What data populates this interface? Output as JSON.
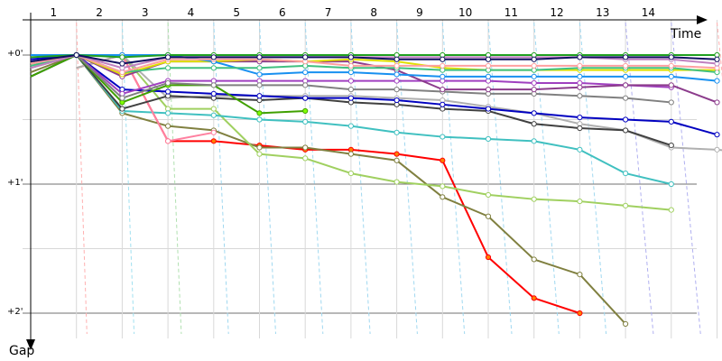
{
  "chart_data": {
    "type": "line",
    "xlabel": "Time",
    "ylabel": "Gap",
    "laps": [
      "1",
      "2",
      "3",
      "4",
      "5",
      "6",
      "7",
      "8",
      "9",
      "10",
      "11",
      "12",
      "13",
      "14"
    ],
    "y_ticks": [
      {
        "value": 0,
        "label": "+0'"
      },
      {
        "value": 60,
        "label": "+1'"
      },
      {
        "value": 120,
        "label": "+2'"
      }
    ],
    "ylim": [
      0,
      120
    ],
    "grid": true,
    "series": [
      {
        "color": "#ff0000",
        "marker": "#ff8000",
        "start": 1,
        "values": [
          6,
          0,
          40,
          40,
          42,
          44,
          44,
          46,
          49,
          94,
          113,
          120
        ]
      },
      {
        "color": "#808040",
        "marker": "#ffffff",
        "start": 0,
        "values": [
          8,
          0,
          27,
          33,
          35,
          43,
          43,
          46,
          49,
          66,
          75,
          95,
          102,
          125
        ]
      },
      {
        "color": "#a0d060",
        "marker": "#ffffff",
        "start": 1,
        "values": [
          6,
          0,
          25,
          25,
          46,
          48,
          55,
          59,
          61,
          65,
          67,
          68,
          70,
          72
        ]
      },
      {
        "color": "#40c0c0",
        "marker": "#ffffff",
        "start": 0,
        "values": [
          10,
          0,
          26,
          27,
          28,
          30,
          31,
          33,
          36,
          38,
          39,
          40,
          44,
          55,
          60
        ]
      },
      {
        "color": "#ff80a0",
        "marker": "#ffffff",
        "start": 1,
        "values": [
          6,
          0,
          40,
          36
        ]
      },
      {
        "color": "#b0b0b0",
        "marker": "#ffffff",
        "start": 1,
        "values": [
          6,
          0,
          20,
          19,
          19,
          19,
          19,
          20,
          21,
          24,
          27,
          32,
          35,
          43,
          44,
          46
        ]
      },
      {
        "color": "#404040",
        "marker": "#ffffff",
        "start": 0,
        "values": [
          10,
          0,
          25,
          19,
          20,
          21,
          20,
          22,
          23,
          25,
          26,
          32,
          34,
          35,
          42
        ]
      },
      {
        "color": "#0000c0",
        "marker": "#ffffff",
        "start": 0,
        "values": [
          2,
          0,
          16,
          17,
          18,
          19,
          20,
          20,
          21,
          23,
          25,
          27,
          29,
          30,
          31,
          37
        ]
      },
      {
        "color": "#40a000",
        "marker": "#80ff00",
        "start": 0,
        "values": [
          10,
          0,
          22,
          14,
          14,
          27,
          26
        ]
      },
      {
        "color": "#a040c0",
        "marker": "#ffffff",
        "start": 0,
        "values": [
          4,
          0,
          18,
          12,
          12,
          12,
          12,
          12,
          12,
          12,
          12,
          13,
          13,
          14,
          15
        ]
      },
      {
        "color": "#808080",
        "marker": "#ffffff",
        "start": 0,
        "values": [
          6,
          0,
          20,
          13,
          14,
          14,
          14,
          16,
          16,
          17,
          18,
          18,
          19,
          20,
          22
        ]
      },
      {
        "color": "#8c3c8c",
        "marker": "#ffffff",
        "start": 0,
        "values": [
          4,
          0,
          10,
          3,
          3,
          3,
          3,
          3,
          7,
          16,
          16,
          16,
          15,
          14,
          14,
          22
        ]
      },
      {
        "color": "#e0e000",
        "marker": "#ffffff",
        "start": 0,
        "values": [
          4,
          0,
          9,
          3,
          3,
          2,
          3,
          2,
          3,
          6,
          7,
          7,
          7,
          7,
          7,
          7
        ]
      },
      {
        "color": "#1890f0",
        "marker": "#ffffff",
        "start": 0,
        "values": [
          0,
          0,
          0,
          0,
          3,
          9,
          8,
          8,
          9,
          10,
          10,
          10,
          10,
          10,
          10,
          12
        ]
      },
      {
        "color": "#40c080",
        "marker": "#ffffff",
        "start": 0,
        "values": [
          5,
          0,
          8,
          6,
          6,
          6,
          5,
          6,
          6,
          7,
          7,
          7,
          6,
          6,
          6,
          8
        ]
      },
      {
        "color": "#ffa0a0",
        "marker": "#ffffff",
        "start": 0,
        "values": [
          4,
          0,
          8,
          2,
          2,
          2,
          3,
          5,
          5,
          5,
          5,
          5,
          5,
          5,
          5,
          6
        ]
      },
      {
        "color": "#c080c0",
        "marker": "#ffffff",
        "start": 0,
        "values": [
          6,
          0,
          6,
          1,
          1,
          1,
          1,
          1,
          1,
          1,
          1,
          1,
          1,
          2,
          2,
          4
        ]
      },
      {
        "color": "#20a020",
        "marker": "#ffffff",
        "start": 0,
        "values": [
          1,
          0,
          1,
          0,
          0,
          0,
          0,
          0,
          0,
          0,
          0,
          0,
          0,
          0,
          0,
          0
        ]
      },
      {
        "color": "#101060",
        "marker": "#ffffff",
        "start": 0,
        "values": [
          3,
          0,
          4,
          1,
          1,
          1,
          1,
          1,
          2,
          2,
          2,
          2,
          1,
          1,
          1,
          2
        ]
      }
    ]
  }
}
